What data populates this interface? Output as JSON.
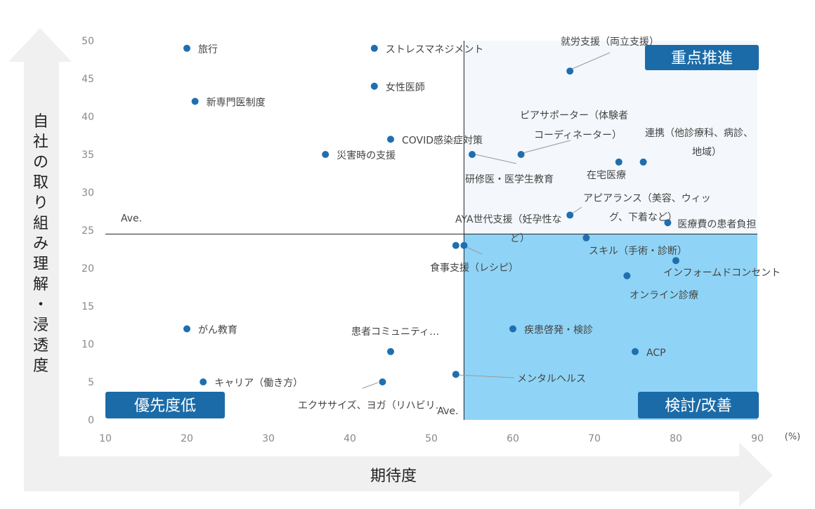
{
  "chart_data": {
    "type": "scatter",
    "xlabel": "期待度",
    "ylabel": "自社の取り組み理解・浸透度",
    "x_unit": "(%)",
    "xlim": [
      10,
      90
    ],
    "ylim": [
      0,
      50
    ],
    "x_ticks": [
      10,
      20,
      30,
      40,
      50,
      60,
      70,
      80,
      90
    ],
    "y_ticks": [
      0,
      5,
      10,
      15,
      20,
      25,
      30,
      35,
      40,
      45,
      50
    ],
    "x_ave": 54,
    "y_ave": 24.5,
    "ave_label": "Ave.",
    "quadrants": {
      "top_right": "重点推進",
      "bottom_right": "検討/改善",
      "bottom_left": "優先度低"
    },
    "colors": {
      "point": "#1f6fb0",
      "top_right_fill": "#f4f7fb",
      "bottom_right_fill": "#8fd4f6",
      "label_box": "#1b6ba8",
      "grid_line": "#222222"
    },
    "points": [
      {
        "label": "旅行",
        "x": 20,
        "y": 49
      },
      {
        "label": "ストレスマネジメント",
        "x": 43,
        "y": 49
      },
      {
        "label": "女性医師",
        "x": 43,
        "y": 44
      },
      {
        "label": "新専門医制度",
        "x": 21,
        "y": 42
      },
      {
        "label": "COVID感染症対策",
        "x": 45,
        "y": 37
      },
      {
        "label": "災害時の支援",
        "x": 37,
        "y": 35
      },
      {
        "label": "研修医・医学生教育",
        "x": 55,
        "y": 35
      },
      {
        "label": "ピアサポーター（体験者コーディネーター）",
        "x": 61,
        "y": 35
      },
      {
        "label": "就労支援（両立支援）",
        "x": 67,
        "y": 46
      },
      {
        "label": "在宅医療",
        "x": 73,
        "y": 34
      },
      {
        "label": "連携（他診療科、病診、地域）",
        "x": 76,
        "y": 34
      },
      {
        "label": "アピアランス（美容、ウィッグ、下着など）",
        "x": 67,
        "y": 27
      },
      {
        "label": "医療費の患者負担",
        "x": 79,
        "y": 26
      },
      {
        "label": "AYA世代支援（妊孕性など）",
        "x": 53,
        "y": 23
      },
      {
        "label": "食事支援（レシピ）",
        "x": 54,
        "y": 23
      },
      {
        "label": "スキル（手術・診断）",
        "x": 69,
        "y": 24
      },
      {
        "label": "インフォームドコンセント",
        "x": 80,
        "y": 21
      },
      {
        "label": "オンライン診療",
        "x": 74,
        "y": 19
      },
      {
        "label": "がん教育",
        "x": 20,
        "y": 12
      },
      {
        "label": "疾患啓発・検診",
        "x": 60,
        "y": 12
      },
      {
        "label": "患者コミュニティ…",
        "x": 45,
        "y": 9
      },
      {
        "label": "ACP",
        "x": 75,
        "y": 9
      },
      {
        "label": "キャリア（働き方）",
        "x": 22,
        "y": 5
      },
      {
        "label": "エクササイズ、ヨガ（リハビリ…",
        "x": 44,
        "y": 5
      },
      {
        "label": "メンタルヘルス",
        "x": 53,
        "y": 6
      }
    ]
  }
}
